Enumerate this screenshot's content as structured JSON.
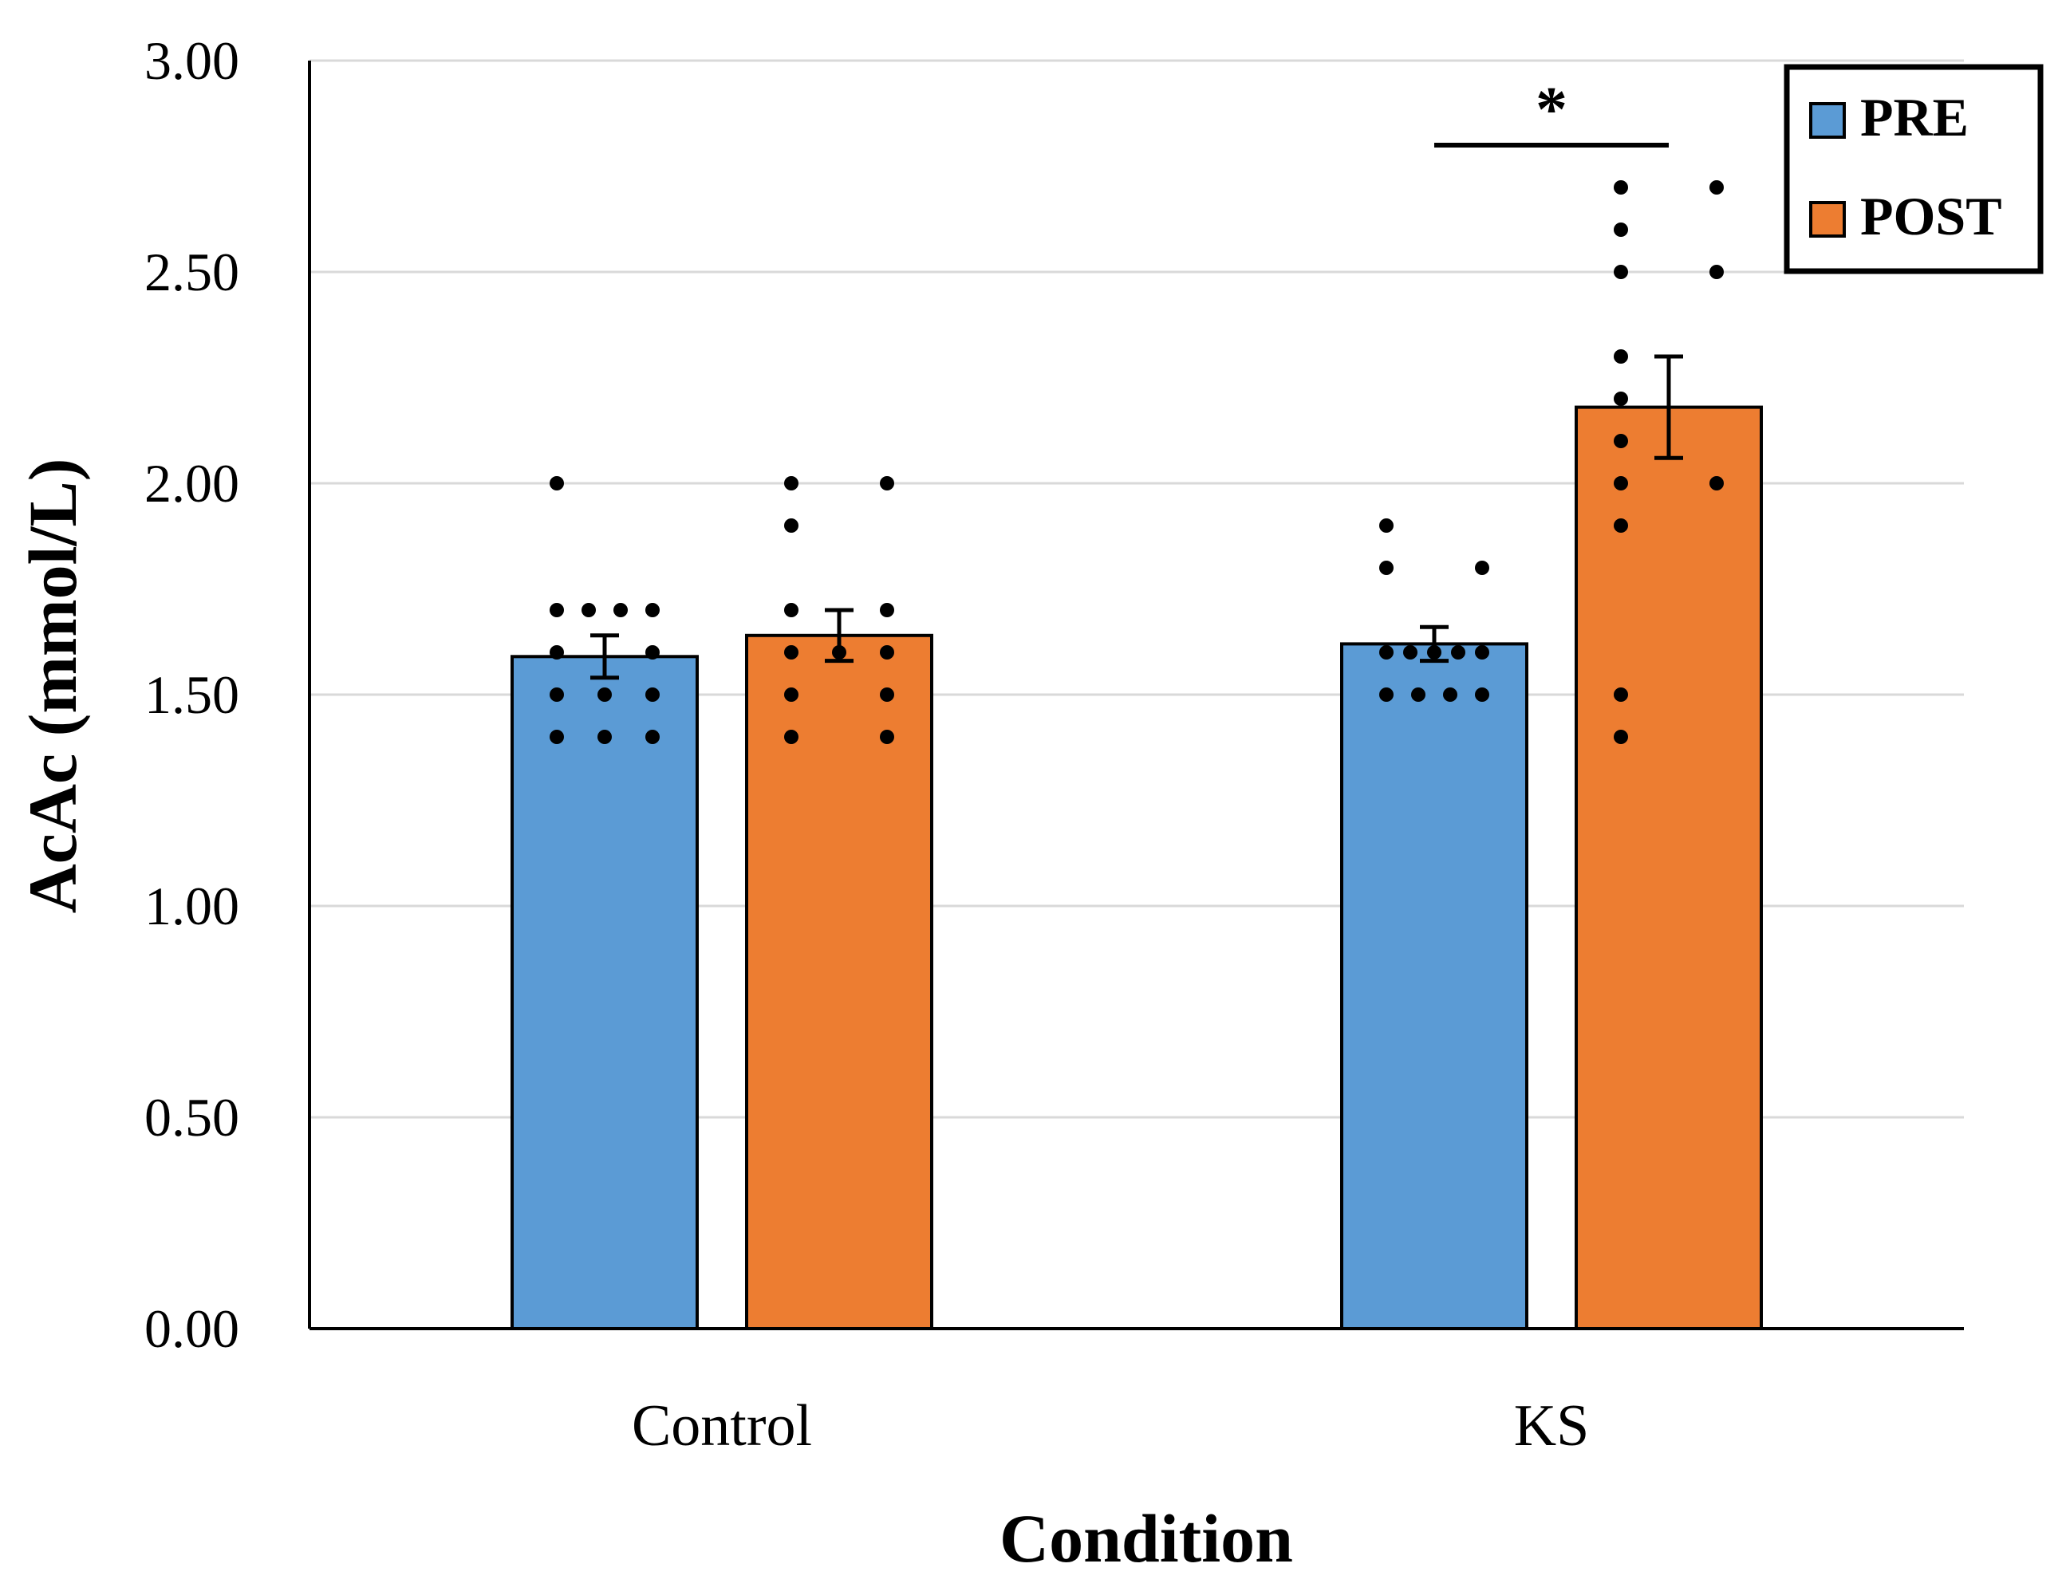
{
  "chart_data": {
    "type": "bar",
    "title": "",
    "xlabel": "Condition",
    "ylabel": "AcAc (mmol/L)",
    "ylim": [
      0,
      3
    ],
    "yticks": [
      "0.00",
      "0.50",
      "1.00",
      "1.50",
      "2.00",
      "2.50",
      "3.00"
    ],
    "grid": true,
    "legend_position": "top-right",
    "categories": [
      "Control",
      "KS"
    ],
    "series": [
      {
        "name": "PRE",
        "color": "#5b9bd5",
        "values": [
          1.59,
          1.62
        ],
        "errors": [
          0.05,
          0.04
        ],
        "points": [
          [
            2.0,
            1.7,
            1.7,
            1.7,
            1.7,
            1.6,
            1.6,
            1.5,
            1.5,
            1.5,
            1.4,
            1.4,
            1.4
          ],
          [
            1.9,
            1.8,
            1.8,
            1.6,
            1.6,
            1.6,
            1.6,
            1.6,
            1.5,
            1.5,
            1.5,
            1.5
          ]
        ]
      },
      {
        "name": "POST",
        "color": "#ed7d31",
        "values": [
          1.64,
          2.18
        ],
        "errors": [
          0.06,
          0.12
        ],
        "points": [
          [
            2.0,
            2.0,
            1.9,
            1.7,
            1.7,
            1.6,
            1.6,
            1.6,
            1.5,
            1.5,
            1.4,
            1.4
          ],
          [
            2.7,
            2.7,
            2.6,
            2.5,
            2.5,
            2.3,
            2.2,
            2.1,
            2.0,
            2.0,
            1.9,
            1.5,
            1.4
          ]
        ]
      }
    ],
    "annotations": [
      {
        "text": "*",
        "category": "KS",
        "y": 2.8,
        "meaning": "significant PRE vs POST"
      }
    ]
  }
}
